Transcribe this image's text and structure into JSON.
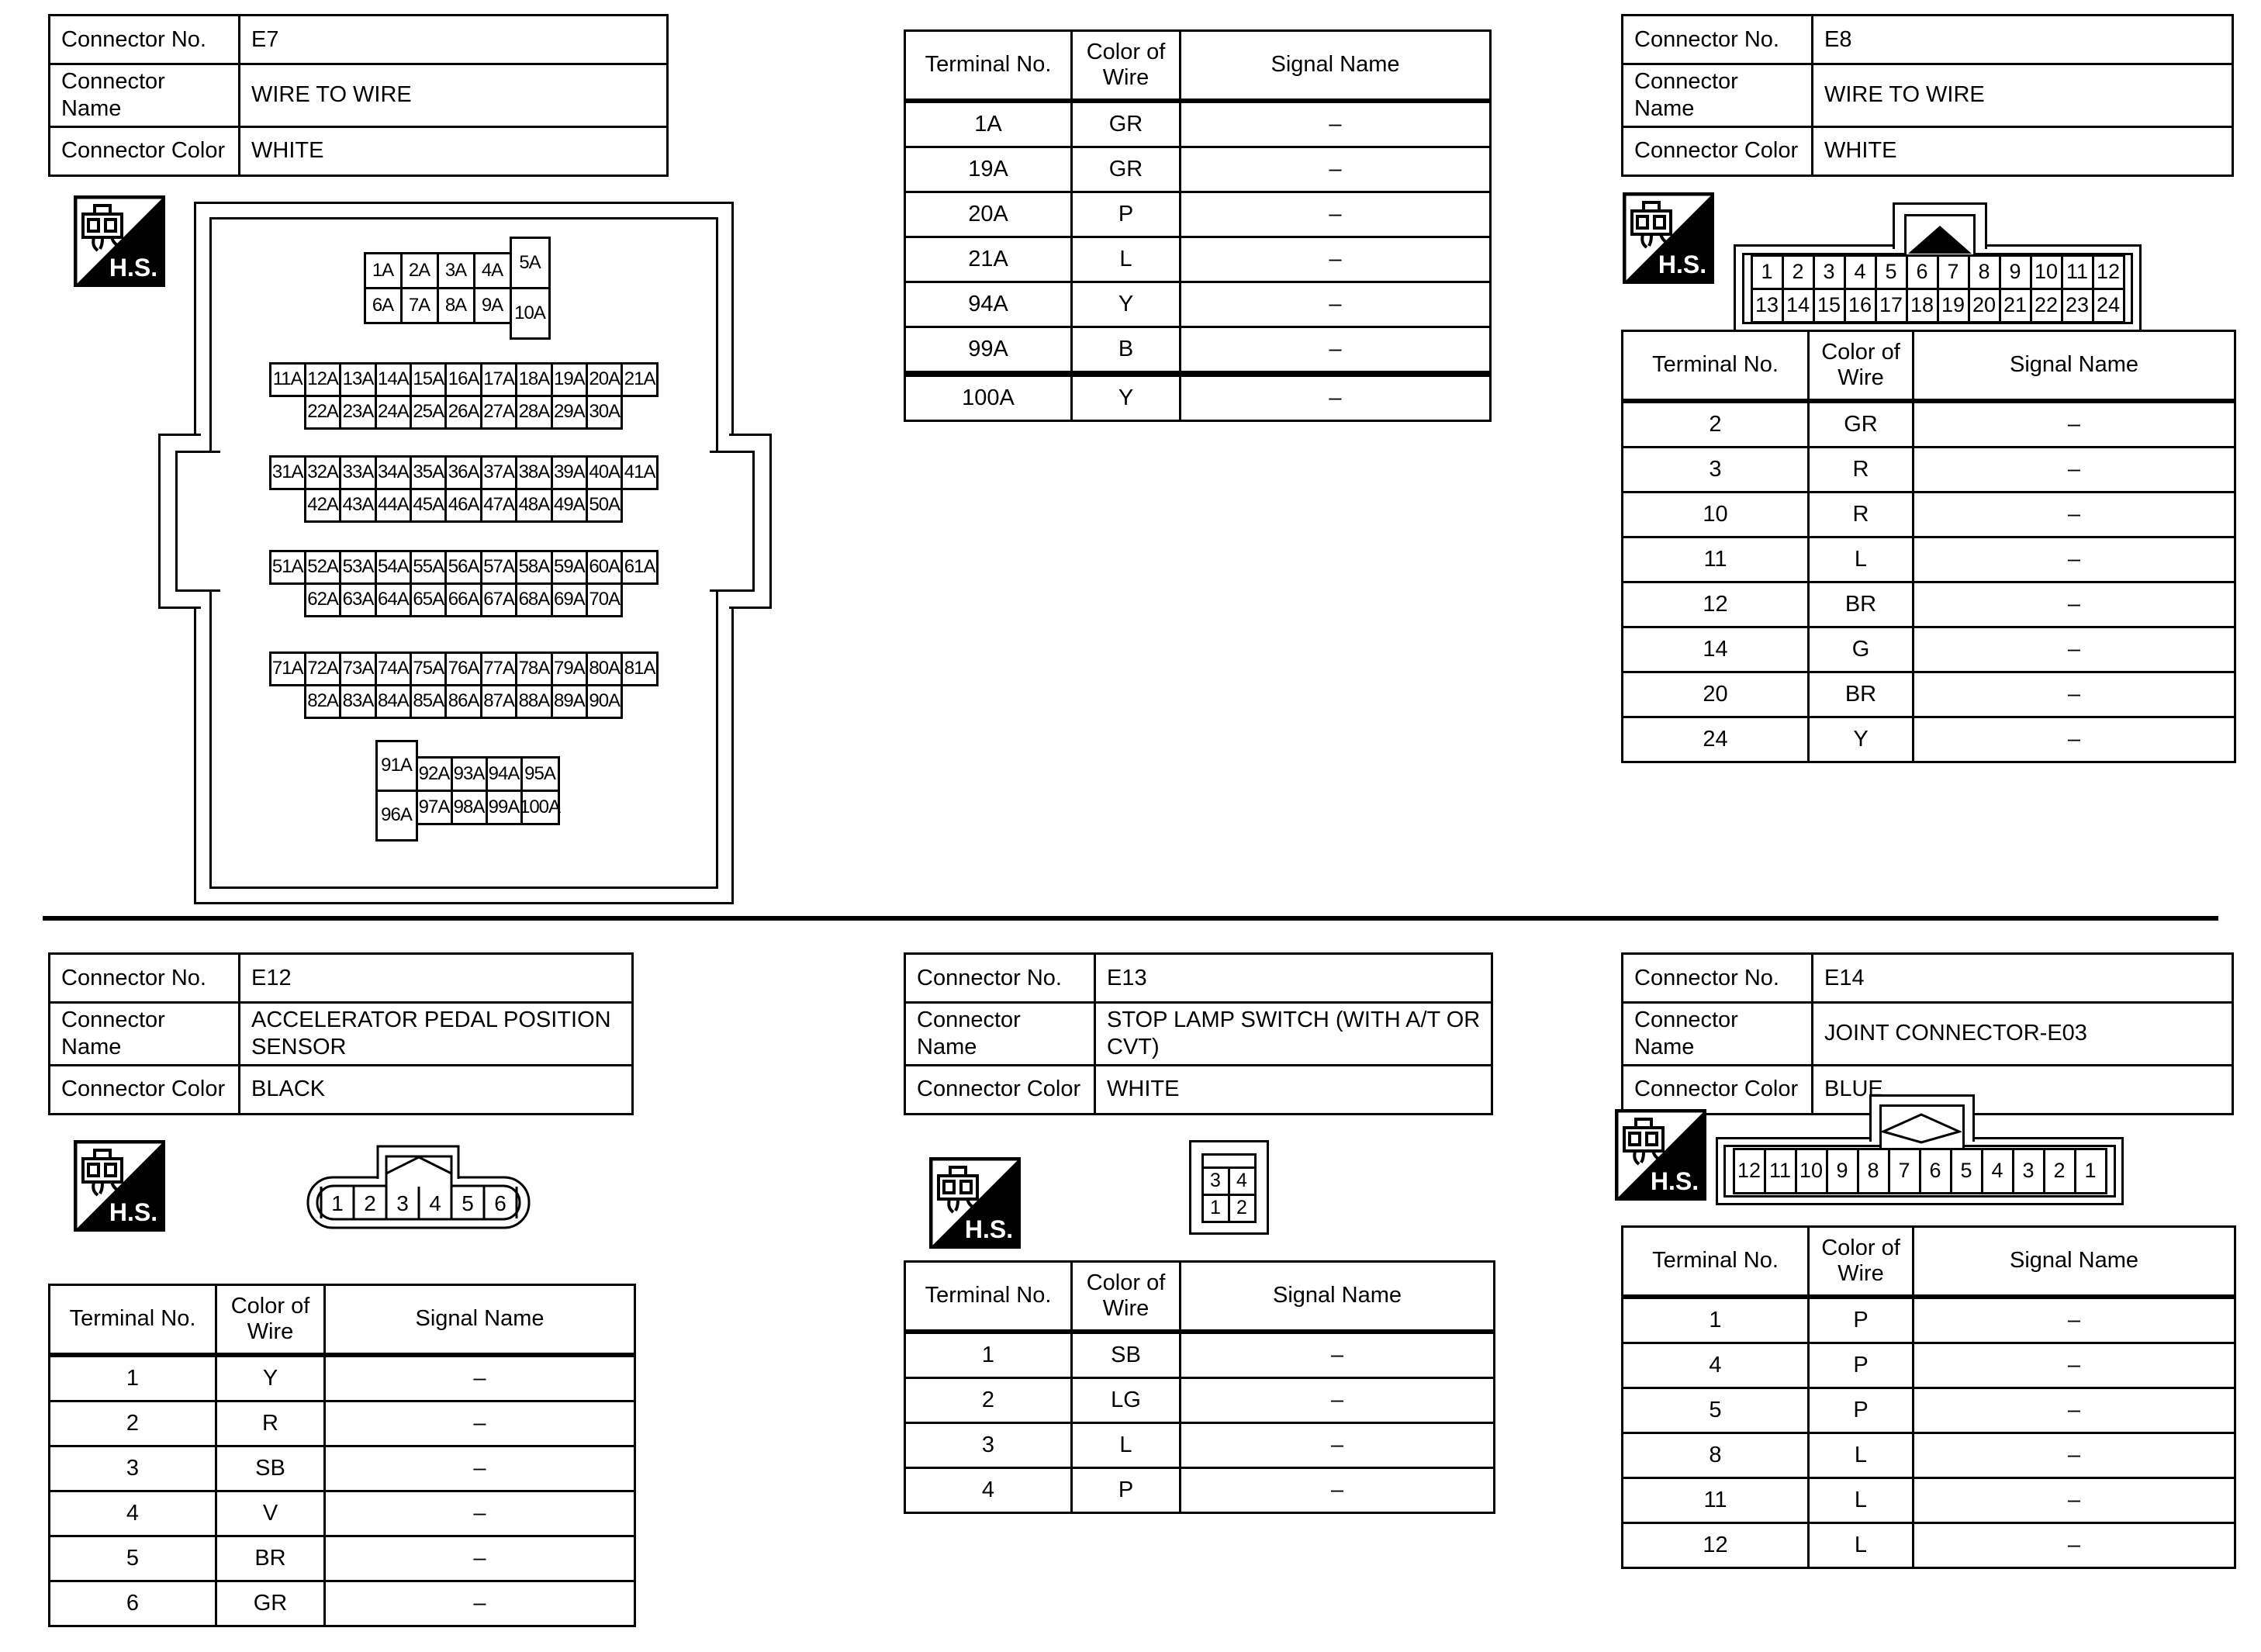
{
  "hs_label": "H.S.",
  "labels": {
    "no": "Connector No.",
    "name": "Connector Name",
    "color": "Connector Color"
  },
  "headers": {
    "terminal": "Terminal No.",
    "color": "Color of Wire",
    "signal": "Signal Name"
  },
  "sections": {
    "e7": {
      "no": "E7",
      "name": "WIRE TO WIRE",
      "color": "WHITE",
      "terminals": [
        [
          "1A",
          "GR",
          "–"
        ],
        [
          "19A",
          "GR",
          "–"
        ],
        [
          "20A",
          "P",
          "–"
        ],
        [
          "21A",
          "L",
          "–"
        ],
        [
          "94A",
          "Y",
          "–"
        ],
        [
          "99A",
          "B",
          "–"
        ],
        [
          "100A",
          "Y",
          "–"
        ]
      ]
    },
    "e8": {
      "no": "E8",
      "name": "WIRE TO WIRE",
      "color": "WHITE",
      "terminals": [
        [
          "2",
          "GR",
          "–"
        ],
        [
          "3",
          "R",
          "–"
        ],
        [
          "10",
          "R",
          "–"
        ],
        [
          "11",
          "L",
          "–"
        ],
        [
          "12",
          "BR",
          "–"
        ],
        [
          "14",
          "G",
          "–"
        ],
        [
          "20",
          "BR",
          "–"
        ],
        [
          "24",
          "Y",
          "–"
        ]
      ]
    },
    "e12": {
      "no": "E12",
      "name": "ACCELERATOR PEDAL POSITION SENSOR",
      "color": "BLACK",
      "terminals": [
        [
          "1",
          "Y",
          "–"
        ],
        [
          "2",
          "R",
          "–"
        ],
        [
          "3",
          "SB",
          "–"
        ],
        [
          "4",
          "V",
          "–"
        ],
        [
          "5",
          "BR",
          "–"
        ],
        [
          "6",
          "GR",
          "–"
        ]
      ]
    },
    "e13": {
      "no": "E13",
      "name": "STOP LAMP SWITCH (WITH A/T OR CVT)",
      "color": "WHITE",
      "terminals": [
        [
          "1",
          "SB",
          "–"
        ],
        [
          "2",
          "LG",
          "–"
        ],
        [
          "3",
          "L",
          "–"
        ],
        [
          "4",
          "P",
          "–"
        ]
      ]
    },
    "e14": {
      "no": "E14",
      "name": "JOINT CONNECTOR-E03",
      "color": "BLUE",
      "terminals": [
        [
          "1",
          "P",
          "–"
        ],
        [
          "4",
          "P",
          "–"
        ],
        [
          "5",
          "P",
          "–"
        ],
        [
          "8",
          "L",
          "–"
        ],
        [
          "11",
          "L",
          "–"
        ],
        [
          "12",
          "L",
          "–"
        ]
      ]
    }
  },
  "pin_blocks": {
    "e7_a": {
      "cells": [
        [
          "1A",
          1,
          2
        ],
        [
          "2A",
          2,
          2
        ],
        [
          "3A",
          3,
          2
        ],
        [
          "4A",
          4,
          2
        ],
        [
          "5A",
          5,
          1,
          2
        ],
        [
          "6A",
          1,
          3
        ],
        [
          "7A",
          2,
          3
        ],
        [
          "8A",
          3,
          3
        ],
        [
          "9A",
          4,
          3
        ],
        [
          "10A",
          5,
          3,
          2
        ]
      ]
    },
    "e7_b": {
      "cells": [
        [
          "11A",
          1,
          1
        ],
        [
          "12A",
          2,
          1
        ],
        [
          "13A",
          3,
          1
        ],
        [
          "14A",
          4,
          1
        ],
        [
          "15A",
          5,
          1
        ],
        [
          "16A",
          6,
          1
        ],
        [
          "17A",
          7,
          1
        ],
        [
          "18A",
          8,
          1
        ],
        [
          "19A",
          9,
          1
        ],
        [
          "20A",
          10,
          1
        ],
        [
          "21A",
          11,
          1
        ],
        [
          "22A",
          2,
          2
        ],
        [
          "23A",
          3,
          2
        ],
        [
          "24A",
          4,
          2
        ],
        [
          "25A",
          5,
          2
        ],
        [
          "26A",
          6,
          2
        ],
        [
          "27A",
          7,
          2
        ],
        [
          "28A",
          8,
          2
        ],
        [
          "29A",
          9,
          2
        ],
        [
          "30A",
          10,
          2
        ]
      ]
    },
    "e7_c": {
      "cells": [
        [
          "31A",
          1,
          1
        ],
        [
          "32A",
          2,
          1
        ],
        [
          "33A",
          3,
          1
        ],
        [
          "34A",
          4,
          1
        ],
        [
          "35A",
          5,
          1
        ],
        [
          "36A",
          6,
          1
        ],
        [
          "37A",
          7,
          1
        ],
        [
          "38A",
          8,
          1
        ],
        [
          "39A",
          9,
          1
        ],
        [
          "40A",
          10,
          1
        ],
        [
          "41A",
          11,
          1
        ],
        [
          "42A",
          2,
          2
        ],
        [
          "43A",
          3,
          2
        ],
        [
          "44A",
          4,
          2
        ],
        [
          "45A",
          5,
          2
        ],
        [
          "46A",
          6,
          2
        ],
        [
          "47A",
          7,
          2
        ],
        [
          "48A",
          8,
          2
        ],
        [
          "49A",
          9,
          2
        ],
        [
          "50A",
          10,
          2
        ]
      ]
    },
    "e7_d": {
      "cells": [
        [
          "51A",
          1,
          1
        ],
        [
          "52A",
          2,
          1
        ],
        [
          "53A",
          3,
          1
        ],
        [
          "54A",
          4,
          1
        ],
        [
          "55A",
          5,
          1
        ],
        [
          "56A",
          6,
          1
        ],
        [
          "57A",
          7,
          1
        ],
        [
          "58A",
          8,
          1
        ],
        [
          "59A",
          9,
          1
        ],
        [
          "60A",
          10,
          1
        ],
        [
          "61A",
          11,
          1
        ],
        [
          "62A",
          2,
          2
        ],
        [
          "63A",
          3,
          2
        ],
        [
          "64A",
          4,
          2
        ],
        [
          "65A",
          5,
          2
        ],
        [
          "66A",
          6,
          2
        ],
        [
          "67A",
          7,
          2
        ],
        [
          "68A",
          8,
          2
        ],
        [
          "69A",
          9,
          2
        ],
        [
          "70A",
          10,
          2
        ]
      ]
    },
    "e7_e": {
      "cells": [
        [
          "71A",
          1,
          1
        ],
        [
          "72A",
          2,
          1
        ],
        [
          "73A",
          3,
          1
        ],
        [
          "74A",
          4,
          1
        ],
        [
          "75A",
          5,
          1
        ],
        [
          "76A",
          6,
          1
        ],
        [
          "77A",
          7,
          1
        ],
        [
          "78A",
          8,
          1
        ],
        [
          "79A",
          9,
          1
        ],
        [
          "80A",
          10,
          1
        ],
        [
          "81A",
          11,
          1
        ],
        [
          "82A",
          2,
          2
        ],
        [
          "83A",
          3,
          2
        ],
        [
          "84A",
          4,
          2
        ],
        [
          "85A",
          5,
          2
        ],
        [
          "86A",
          6,
          2
        ],
        [
          "87A",
          7,
          2
        ],
        [
          "88A",
          8,
          2
        ],
        [
          "89A",
          9,
          2
        ],
        [
          "90A",
          10,
          2
        ]
      ]
    },
    "e7_f": {
      "cells": [
        [
          "91A",
          1,
          1,
          2
        ],
        [
          "92A",
          2,
          2
        ],
        [
          "93A",
          3,
          2
        ],
        [
          "94A",
          4,
          2
        ],
        [
          "95A",
          5,
          2
        ],
        [
          "96A",
          1,
          3,
          2
        ],
        [
          "97A",
          2,
          3
        ],
        [
          "98A",
          3,
          3
        ],
        [
          "99A",
          4,
          3
        ],
        [
          "100A",
          5,
          3
        ]
      ]
    },
    "e8": {
      "cells": [
        [
          "1",
          1,
          1
        ],
        [
          "2",
          2,
          1
        ],
        [
          "3",
          3,
          1
        ],
        [
          "4",
          4,
          1
        ],
        [
          "5",
          5,
          1
        ],
        [
          "6",
          6,
          1
        ],
        [
          "7",
          7,
          1
        ],
        [
          "8",
          8,
          1
        ],
        [
          "9",
          9,
          1
        ],
        [
          "10",
          10,
          1
        ],
        [
          "11",
          11,
          1
        ],
        [
          "12",
          12,
          1
        ],
        [
          "13",
          1,
          2
        ],
        [
          "14",
          2,
          2
        ],
        [
          "15",
          3,
          2
        ],
        [
          "16",
          4,
          2
        ],
        [
          "17",
          5,
          2
        ],
        [
          "18",
          6,
          2
        ],
        [
          "19",
          7,
          2
        ],
        [
          "20",
          8,
          2
        ],
        [
          "21",
          9,
          2
        ],
        [
          "22",
          10,
          2
        ],
        [
          "23",
          11,
          2
        ],
        [
          "24",
          12,
          2
        ]
      ]
    },
    "e13": {
      "cells": [
        [
          "3",
          1,
          1
        ],
        [
          "4",
          2,
          1
        ],
        [
          "1",
          1,
          2
        ],
        [
          "2",
          2,
          2
        ]
      ]
    },
    "e14": {
      "cells": [
        [
          "12",
          1,
          1
        ],
        [
          "11",
          2,
          1
        ],
        [
          "10",
          3,
          1
        ],
        [
          "9",
          4,
          1
        ],
        [
          "8",
          5,
          1
        ],
        [
          "7",
          6,
          1
        ],
        [
          "6",
          7,
          1
        ],
        [
          "5",
          8,
          1
        ],
        [
          "4",
          9,
          1
        ],
        [
          "3",
          10,
          1
        ],
        [
          "2",
          11,
          1
        ],
        [
          "1",
          12,
          1
        ]
      ]
    },
    "e12": {
      "labels": [
        "1",
        "2",
        "3",
        "4",
        "5",
        "6"
      ]
    }
  }
}
